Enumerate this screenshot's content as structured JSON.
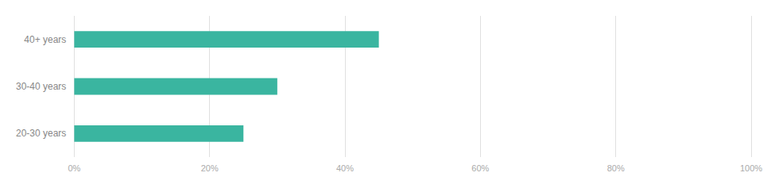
{
  "chart_data": {
    "type": "bar",
    "orientation": "horizontal",
    "categories": [
      "20-30 years",
      "30-40 years",
      "40+ years"
    ],
    "values": [
      25,
      30,
      45
    ],
    "color": "#3ab5a0",
    "xlim": [
      0,
      100
    ],
    "xticks": [
      {
        "value": 0,
        "label": "0%"
      },
      {
        "value": 20,
        "label": "20%"
      },
      {
        "value": 40,
        "label": "40%"
      },
      {
        "value": 60,
        "label": "60%"
      },
      {
        "value": 80,
        "label": "80%"
      },
      {
        "value": 100,
        "label": "100%"
      }
    ],
    "grid": true
  }
}
